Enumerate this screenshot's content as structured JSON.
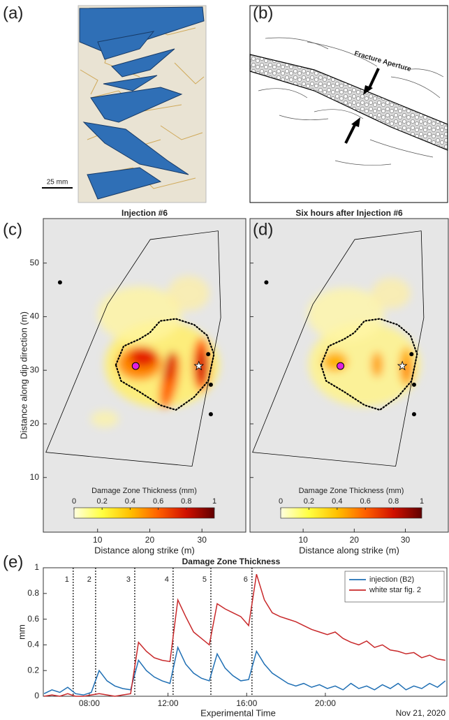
{
  "figures": {
    "a": {
      "panel_label": "(a)",
      "scale_bar": "25 mm"
    },
    "b": {
      "panel_label": "(b)",
      "annotation": "Fracture Aperture"
    }
  },
  "chart_data": [
    {
      "type": "map",
      "panel_label": "(c)",
      "title": "Injection #6",
      "x_label": "Distance along strike (m)",
      "y_label": "Distance along dip direction (m)",
      "xlim": [
        -0.4,
        38.4
      ],
      "ylim": [
        -0.2,
        58.3
      ],
      "xticks": [
        10,
        20,
        30
      ],
      "yticks": [
        10,
        20,
        30,
        40,
        50
      ],
      "outline": {
        "x": [
          0.1,
          11.9,
          20.1,
          33.1,
          33.6,
          28.1
        ],
        "y": [
          14.7,
          42.3,
          54.4,
          56.0,
          39.8,
          12.1
        ]
      },
      "contour": {
        "x": [
          13.5,
          15,
          18,
          20,
          22,
          25,
          28.5,
          31,
          32.3,
          31.2,
          28.5,
          25,
          22,
          18,
          14.5
        ],
        "y": [
          31,
          34.5,
          35.8,
          37,
          39.2,
          39.6,
          38.5,
          36.5,
          33,
          28,
          25,
          22.6,
          23.5,
          26,
          28
        ]
      },
      "wells": {
        "x": [
          2.8,
          31.2,
          31.7,
          31.7
        ],
        "y": [
          46.4,
          33,
          27.3,
          21.8
        ],
        "color": "#000000"
      },
      "injection_point": {
        "x": 17.3,
        "y": 30.8,
        "color": "#e020e0"
      },
      "star": {
        "x": 29.4,
        "y": 30.8,
        "color": "#ffffff"
      },
      "colorbar": {
        "label": "Damage Zone Thickness (mm)",
        "lim": [
          0,
          1
        ],
        "ticks": [
          0,
          0.2,
          0.4,
          0.6,
          0.8,
          1
        ],
        "colors": [
          "#ffffe0",
          "#ffff40",
          "#ffc000",
          "#ff6000",
          "#d01000",
          "#600000"
        ]
      }
    },
    {
      "type": "map",
      "panel_label": "(d)",
      "title": "Six hours after Injection #6",
      "x_label": "Distance along strike (m)",
      "xlim": [
        -0.4,
        38.4
      ],
      "ylim": [
        -0.2,
        58.3
      ],
      "xticks": [
        10,
        20,
        30
      ],
      "yticks": [
        10,
        20,
        30,
        40,
        50
      ],
      "outline": {
        "x": [
          0.1,
          11.9,
          20.1,
          33.1,
          33.6,
          28.1
        ],
        "y": [
          14.7,
          42.3,
          54.4,
          56.0,
          39.8,
          12.1
        ]
      },
      "contour": {
        "x": [
          13.5,
          15,
          18,
          20,
          22,
          25,
          28.5,
          31,
          32.3,
          31.2,
          28.5,
          25,
          22,
          18,
          14.5
        ],
        "y": [
          31,
          34.5,
          35.8,
          37,
          39.2,
          39.6,
          38.5,
          36.5,
          33,
          28,
          25,
          22.6,
          23.5,
          26,
          28
        ]
      },
      "wells": {
        "x": [
          2.8,
          31.2,
          31.7,
          31.7
        ],
        "y": [
          46.4,
          33,
          27.3,
          21.8
        ],
        "color": "#000000"
      },
      "injection_point": {
        "x": 17.3,
        "y": 30.8,
        "color": "#e020e0"
      },
      "star": {
        "x": 29.4,
        "y": 30.8,
        "color": "#ffffff"
      },
      "colorbar": {
        "label": "Damage Zone Thickness (mm)",
        "lim": [
          0,
          1
        ],
        "ticks": [
          0,
          0.2,
          0.4,
          0.6,
          0.8,
          1
        ],
        "colors": [
          "#ffffe0",
          "#ffff40",
          "#ffc000",
          "#ff6000",
          "#d01000",
          "#600000"
        ]
      }
    },
    {
      "type": "line",
      "panel_label": "(e)",
      "title": "Damage Zone Thickness",
      "x_label": "Experimental Time",
      "y_label": "mm",
      "note": "Nov 21, 2020",
      "xlim": [
        5.66,
        26.18
      ],
      "ylim": [
        0,
        1
      ],
      "xticks": [
        {
          "value": 8,
          "label": "08:00"
        },
        {
          "value": 12,
          "label": "12:00"
        },
        {
          "value": 16,
          "label": "16:00"
        },
        {
          "value": 20,
          "label": "20:00"
        }
      ],
      "yticks": [
        0,
        0.2,
        0.4,
        0.6,
        0.8,
        1
      ],
      "legend": "upper right",
      "injections": [
        {
          "label": "1",
          "x": 7.18
        },
        {
          "label": "2",
          "x": 8.32
        },
        {
          "label": "3",
          "x": 10.31
        },
        {
          "label": "4",
          "x": 12.26
        },
        {
          "label": "5",
          "x": 14.18
        },
        {
          "label": "6",
          "x": 16.27
        }
      ],
      "x": [
        5.7,
        6.1,
        6.5,
        6.9,
        7.3,
        7.7,
        8.1,
        8.5,
        8.9,
        9.3,
        9.7,
        10.1,
        10.5,
        10.9,
        11.3,
        11.7,
        12.1,
        12.5,
        12.9,
        13.3,
        13.7,
        14.1,
        14.5,
        14.9,
        15.3,
        15.7,
        16.1,
        16.5,
        16.9,
        17.3,
        17.7,
        18.1,
        18.5,
        18.9,
        19.3,
        19.7,
        20.1,
        20.5,
        20.9,
        21.3,
        21.7,
        22.1,
        22.5,
        22.9,
        23.3,
        23.7,
        24.1,
        24.5,
        24.9,
        25.3,
        25.7,
        26.1
      ],
      "series": [
        {
          "name": "injection (B2)",
          "color": "#1f6fb4",
          "values": [
            0.02,
            0.05,
            0.03,
            0.07,
            0.02,
            0.01,
            0.03,
            0.2,
            0.12,
            0.08,
            0.06,
            0.05,
            0.28,
            0.2,
            0.15,
            0.12,
            0.1,
            0.38,
            0.25,
            0.18,
            0.14,
            0.12,
            0.33,
            0.22,
            0.16,
            0.12,
            0.13,
            0.35,
            0.25,
            0.18,
            0.14,
            0.1,
            0.08,
            0.1,
            0.07,
            0.09,
            0.06,
            0.08,
            0.05,
            0.1,
            0.06,
            0.08,
            0.05,
            0.09,
            0.06,
            0.1,
            0.05,
            0.08,
            0.06,
            0.1,
            0.07,
            0.12
          ]
        },
        {
          "name": "white star fig. 2",
          "color": "#c8282a",
          "values": [
            0,
            0.01,
            0,
            0.02,
            0,
            0,
            0.01,
            0.02,
            0.01,
            0,
            0.01,
            0.02,
            0.42,
            0.35,
            0.3,
            0.28,
            0.27,
            0.75,
            0.62,
            0.5,
            0.45,
            0.4,
            0.72,
            0.68,
            0.65,
            0.62,
            0.55,
            0.95,
            0.75,
            0.65,
            0.62,
            0.6,
            0.58,
            0.55,
            0.52,
            0.5,
            0.48,
            0.5,
            0.45,
            0.42,
            0.4,
            0.43,
            0.38,
            0.4,
            0.36,
            0.35,
            0.33,
            0.34,
            0.3,
            0.32,
            0.29,
            0.28
          ]
        }
      ]
    }
  ]
}
